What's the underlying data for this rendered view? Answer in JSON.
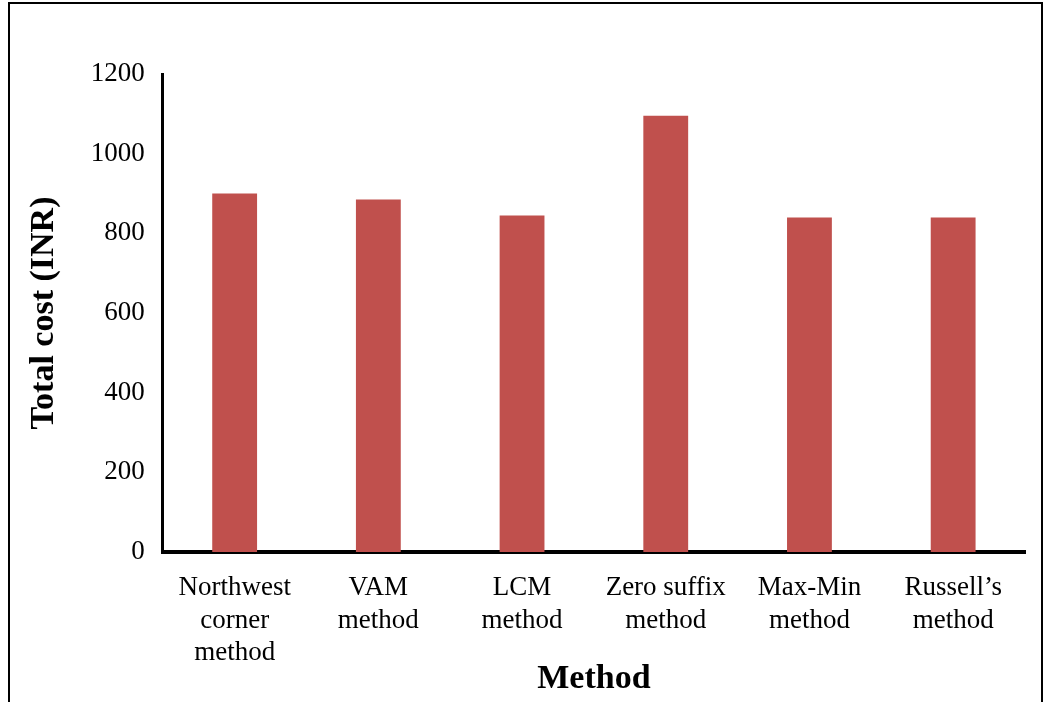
{
  "chart_data": {
    "type": "bar",
    "xlabel": "Method",
    "ylabel": "Total cost (INR)",
    "categories": [
      "Northwest corner method",
      "VAM method",
      "LCM method",
      "Zero suffix method",
      "Max-Min method",
      "Russell’s method"
    ],
    "values": [
      900,
      885,
      845,
      1095,
      840,
      840
    ],
    "color": "#c0504d",
    "ylim": [
      0,
      1200
    ],
    "yticks": [
      0,
      200,
      400,
      600,
      800,
      1000,
      1200
    ],
    "grid": false,
    "legend": false
  }
}
